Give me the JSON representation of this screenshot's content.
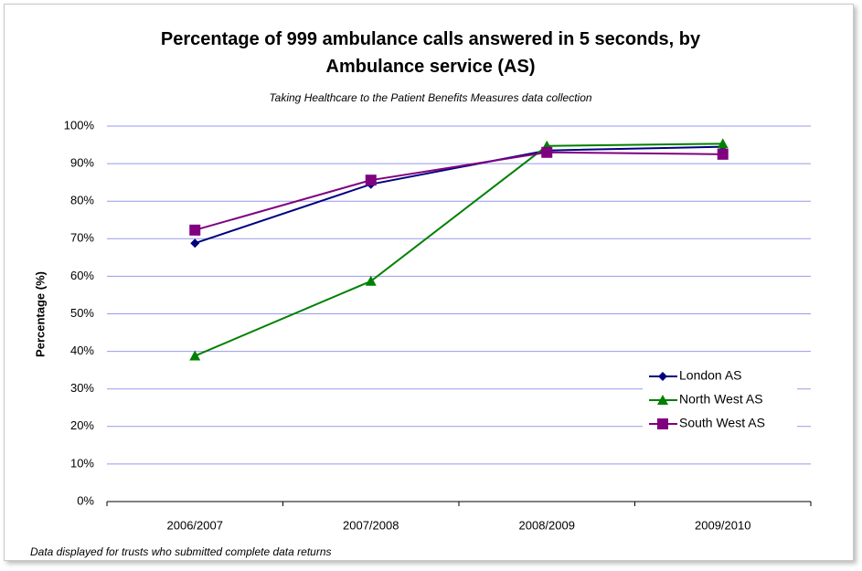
{
  "chart_data": {
    "type": "line",
    "title": "Percentage of 999 ambulance calls answered in 5 seconds, by Ambulance service (AS)",
    "subtitle": "Taking Healthcare to the Patient Benefits Measures data collection",
    "y_label": "Percentage (%)",
    "footnote": "Data displayed for trusts who submitted complete data returns",
    "categories": [
      "2006/2007",
      "2007/2008",
      "2008/2009",
      "2009/2010"
    ],
    "series": [
      {
        "name": "London AS",
        "color": "#000080",
        "marker": "diamond",
        "values": [
          68.8,
          84.5,
          93.5,
          94.5
        ]
      },
      {
        "name": "North West AS",
        "color": "#008000",
        "marker": "triangle",
        "values": [
          38.8,
          58.7,
          94.7,
          95.3
        ]
      },
      {
        "name": "South West AS",
        "color": "#800080",
        "marker": "square",
        "values": [
          72.3,
          85.6,
          93.0,
          92.5
        ]
      }
    ],
    "ylim": [
      0,
      100
    ],
    "yticks": [
      {
        "value": 0,
        "label": "0%"
      },
      {
        "value": 10,
        "label": "10%"
      },
      {
        "value": 20,
        "label": "20%"
      },
      {
        "value": 30,
        "label": "30%"
      },
      {
        "value": 40,
        "label": "40%"
      },
      {
        "value": 50,
        "label": "50%"
      },
      {
        "value": 60,
        "label": "60%"
      },
      {
        "value": 70,
        "label": "70%"
      },
      {
        "value": 80,
        "label": "80%"
      },
      {
        "value": 90,
        "label": "90%"
      },
      {
        "value": 100,
        "label": "100%"
      }
    ],
    "grid": true,
    "grid_color": "#9999ee",
    "legend": "lower right"
  }
}
